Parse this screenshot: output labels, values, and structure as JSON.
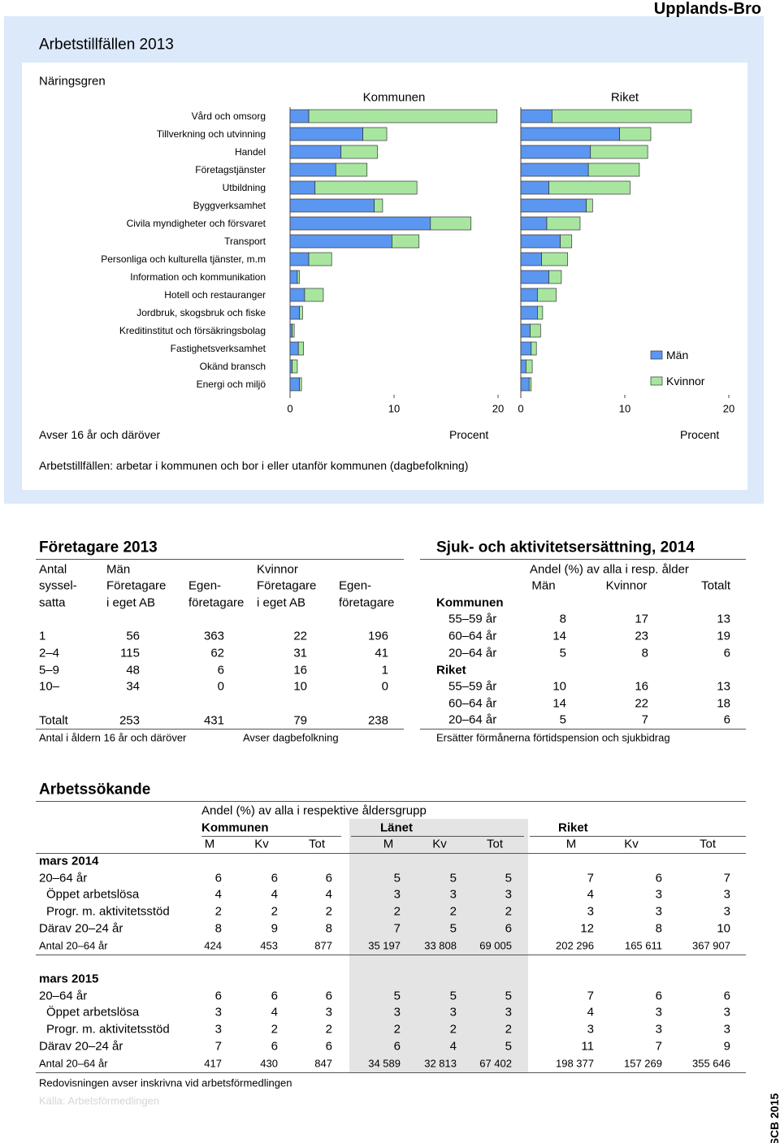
{
  "header": "Upplands-Bro",
  "chart_data": {
    "type": "bar",
    "orientation": "horizontal",
    "stacked": true,
    "title": "Arbetstillfällen 2013",
    "category_label": "Näringsgren",
    "categories": [
      "Vård och omsorg",
      "Tillverkning och utvinning",
      "Handel",
      "Företagstjänster",
      "Utbildning",
      "Byggverksamhet",
      "Civila myndigheter och försvaret",
      "Transport",
      "Personliga och kulturella tjänster, m.m",
      "Information och kommunikation",
      "Hotell och restauranger",
      "Jordbruk, skogsbruk och fiske",
      "Kreditinstitut och försäkringsbolag",
      "Fastighetsverksamhet",
      "Okänd bransch",
      "Energi och miljö"
    ],
    "legend": [
      {
        "name": "Män",
        "color": "#5b96f0"
      },
      {
        "name": "Kvinnor",
        "color": "#a8e6a0"
      }
    ],
    "panels": [
      {
        "title": "Kommunen",
        "xlabel": "Procent",
        "series": [
          {
            "values": [
              1.8,
              7.0,
              4.9,
              4.4,
              2.4,
              8.1,
              13.5,
              9.8,
              1.8,
              0.7,
              1.4,
              0.9,
              0.2,
              0.8,
              0.2,
              0.9
            ]
          },
          {
            "values": [
              18.1,
              2.3,
              3.5,
              3.0,
              9.8,
              0.8,
              3.9,
              2.6,
              2.2,
              0.2,
              1.8,
              0.3,
              0.2,
              0.5,
              0.5,
              0.2
            ]
          }
        ]
      },
      {
        "title": "Riket",
        "xlabel": "Procent",
        "series": [
          {
            "values": [
              3.0,
              9.5,
              6.7,
              6.5,
              2.7,
              6.3,
              2.5,
              3.8,
              2.0,
              2.7,
              1.6,
              1.6,
              0.9,
              1.0,
              0.5,
              0.8
            ]
          },
          {
            "values": [
              13.4,
              3.0,
              5.5,
              4.9,
              7.8,
              0.6,
              3.2,
              1.1,
              2.5,
              1.2,
              1.8,
              0.5,
              1.0,
              0.5,
              0.6,
              0.2
            ]
          }
        ]
      }
    ],
    "xlim": [
      0,
      20
    ],
    "xticks": [
      0,
      10,
      20
    ],
    "notes": [
      "Avser 16 år och däröver",
      "Arbetstillfällen: arbetar i kommunen och bor i eller utanför kommunen (dagbefolkning)"
    ]
  },
  "foretagare": {
    "title": "Företagare 2013",
    "head": {
      "antal": "Antal",
      "man": "Män",
      "kvinnor": "Kvinnor",
      "syssel": "syssel-",
      "satta": "satta",
      "ab1": "Företagare",
      "ab2": "i eget AB",
      "eg1": "Egen-",
      "eg2": "företagare"
    },
    "rows": [
      [
        "1",
        56,
        363,
        22,
        196
      ],
      [
        "2–4",
        115,
        62,
        31,
        41
      ],
      [
        "5–9",
        48,
        6,
        16,
        1
      ],
      [
        "10–",
        34,
        0,
        10,
        0
      ]
    ],
    "total": [
      "Totalt",
      253,
      431,
      79,
      238
    ],
    "notes": [
      "Antal i åldern 16 år och däröver",
      "Avser dagbefolkning"
    ]
  },
  "sjuk": {
    "title": "Sjuk- och aktivitetsersättning, 2014",
    "subtitle": "Andel (%) av alla i resp. ålder",
    "columns": [
      "Män",
      "Kvinnor",
      "Totalt"
    ],
    "groups": [
      {
        "name": "Kommunen",
        "rows": [
          [
            "55–59 år",
            8,
            17,
            13
          ],
          [
            "60–64 år",
            14,
            23,
            19
          ],
          [
            "20–64 år",
            5,
            8,
            6
          ]
        ]
      },
      {
        "name": "Riket",
        "rows": [
          [
            "55–59 år",
            10,
            16,
            13
          ],
          [
            "60–64 år",
            14,
            22,
            18
          ],
          [
            "20–64 år",
            5,
            7,
            6
          ]
        ]
      }
    ],
    "note": "Ersätter förmånerna förtidspension och sjukbidrag"
  },
  "arbetssokande": {
    "title": "Arbetssökande",
    "subtitle": "Andel (%) av alla i respektive åldersgrupp",
    "groups": [
      "Kommunen",
      "Länet",
      "Riket"
    ],
    "columns": [
      "M",
      "Kv",
      "Tot"
    ],
    "periods": [
      {
        "name": "mars 2014",
        "rows": [
          [
            "20–64 år",
            6,
            6,
            6,
            5,
            5,
            5,
            7,
            6,
            7
          ],
          [
            "Öppet arbetslösa",
            4,
            4,
            4,
            3,
            3,
            3,
            4,
            3,
            3
          ],
          [
            "Progr. m. aktivitetsstöd",
            2,
            2,
            2,
            2,
            2,
            2,
            3,
            3,
            3
          ],
          [
            "Därav 20–24 år",
            8,
            9,
            8,
            7,
            5,
            6,
            12,
            8,
            10
          ]
        ],
        "antal": [
          "Antal 20–64 år",
          424,
          453,
          877,
          "35 197",
          "33 808",
          "69 005",
          "202 296",
          "165 611",
          "367 907"
        ]
      },
      {
        "name": "mars 2015",
        "rows": [
          [
            "20–64 år",
            6,
            6,
            6,
            5,
            5,
            5,
            7,
            6,
            6
          ],
          [
            "Öppet arbetslösa",
            3,
            4,
            3,
            3,
            3,
            3,
            4,
            3,
            3
          ],
          [
            "Progr. m. aktivitetsstöd",
            3,
            2,
            2,
            2,
            2,
            2,
            3,
            3,
            3
          ],
          [
            "Därav 20–24 år",
            7,
            6,
            6,
            6,
            4,
            5,
            11,
            7,
            9
          ]
        ],
        "antal": [
          "Antal 20–64 år",
          417,
          430,
          847,
          "34 589",
          "32 813",
          "67 402",
          "198 377",
          "157 269",
          "355 646"
        ]
      }
    ],
    "note": "Redovisningen avser inskrivna vid arbetsförmedlingen",
    "source": "Källa: Arbetsförmedlingen"
  },
  "footer": "SCB 2015"
}
